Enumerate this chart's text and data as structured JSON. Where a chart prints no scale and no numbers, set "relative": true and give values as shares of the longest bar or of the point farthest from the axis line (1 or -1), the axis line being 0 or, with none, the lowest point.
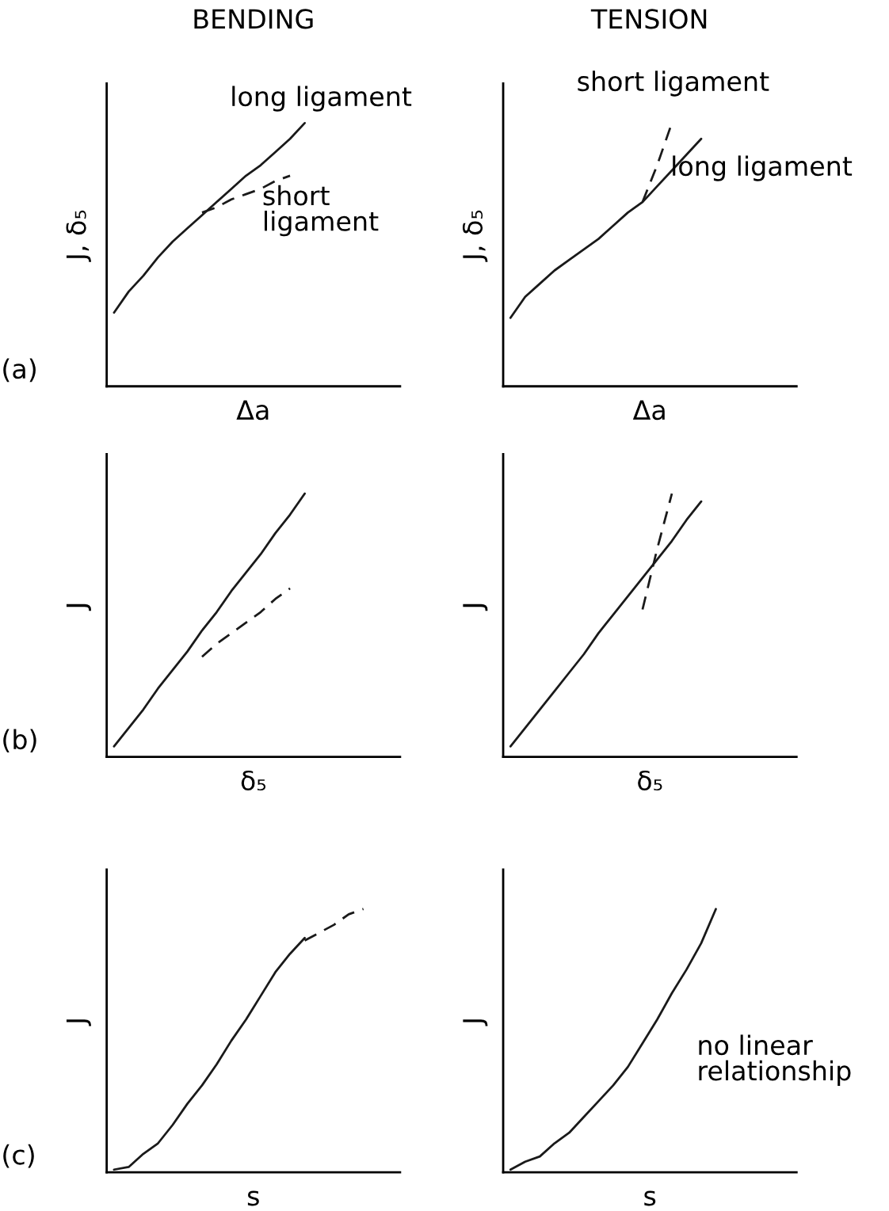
{
  "chart_data": [
    {
      "type": "line",
      "title": "BENDING",
      "xlabel": "Δa",
      "ylabel": "J, δ₅",
      "relative": true,
      "categories": [
        null,
        null,
        null,
        null,
        null,
        null,
        null,
        null,
        null,
        null,
        null,
        null,
        null,
        null,
        null,
        null,
        null,
        null,
        null,
        null
      ],
      "annotations": [
        "(a)",
        "long ligament",
        "short\nligament"
      ],
      "series": [
        {
          "color": "#1a1a1a",
          "line_style": "solid",
          "values": [
            0.28,
            0.36,
            0.42,
            0.49,
            0.55,
            0.6,
            0.65,
            0.7,
            0.75,
            0.8,
            0.84,
            0.89,
            0.94,
            1.0,
            null,
            null,
            null,
            null,
            null,
            null
          ]
        },
        {
          "color": "#1a1a1a",
          "line_style": "dashed",
          "values": [
            null,
            null,
            null,
            null,
            null,
            null,
            0.66,
            0.68,
            0.71,
            0.73,
            0.75,
            0.78,
            0.8,
            null,
            null,
            null,
            null,
            null,
            null,
            null
          ]
        }
      ]
    },
    {
      "type": "line",
      "title": "TENSION",
      "xlabel": "Δa",
      "ylabel": "J, δ₅",
      "relative": true,
      "categories": [
        null,
        null,
        null,
        null,
        null,
        null,
        null,
        null,
        null,
        null,
        null,
        null,
        null,
        null,
        null,
        null,
        null,
        null,
        null,
        null
      ],
      "annotations": [
        "short ligament",
        "long ligament"
      ],
      "series": [
        {
          "color": "#1a1a1a",
          "line_style": "solid",
          "values": [
            0.26,
            0.34,
            0.39,
            0.44,
            0.48,
            0.52,
            0.56,
            0.61,
            0.66,
            0.7,
            0.76,
            0.82,
            0.88,
            0.94,
            null,
            null,
            null,
            null,
            null,
            null
          ]
        },
        {
          "color": "#1a1a1a",
          "line_style": "dashed",
          "values": [
            null,
            null,
            null,
            null,
            null,
            null,
            null,
            null,
            null,
            0.7,
            0.84,
            1.0,
            null,
            null,
            null,
            null,
            null,
            null,
            null,
            null
          ]
        }
      ]
    },
    {
      "type": "line",
      "xlabel": "δ₅",
      "ylabel": "J",
      "relative": true,
      "categories": [
        null,
        null,
        null,
        null,
        null,
        null,
        null,
        null,
        null,
        null,
        null,
        null,
        null,
        null,
        null,
        null,
        null,
        null,
        null,
        null
      ],
      "annotations": [
        "(b)"
      ],
      "series": [
        {
          "color": "#1a1a1a",
          "line_style": "solid",
          "values": [
            0.04,
            0.11,
            0.18,
            0.26,
            0.33,
            0.4,
            0.48,
            0.55,
            0.63,
            0.7,
            0.77,
            0.85,
            0.92,
            1.0,
            null,
            null,
            null,
            null,
            null,
            null
          ]
        },
        {
          "color": "#1a1a1a",
          "line_style": "dashed",
          "values": [
            null,
            null,
            null,
            null,
            null,
            null,
            0.38,
            0.43,
            0.47,
            0.51,
            0.55,
            0.6,
            0.64,
            null,
            null,
            null,
            null,
            null,
            null,
            null
          ]
        }
      ]
    },
    {
      "type": "line",
      "xlabel": "δ₅",
      "ylabel": "J",
      "relative": true,
      "categories": [
        null,
        null,
        null,
        null,
        null,
        null,
        null,
        null,
        null,
        null,
        null,
        null,
        null,
        null,
        null,
        null,
        null,
        null,
        null,
        null
      ],
      "series": [
        {
          "color": "#1a1a1a",
          "line_style": "solid",
          "values": [
            0.04,
            0.11,
            0.18,
            0.25,
            0.32,
            0.39,
            0.47,
            0.54,
            0.61,
            0.68,
            0.75,
            0.82,
            0.9,
            0.97,
            null,
            null,
            null,
            null,
            null,
            null
          ]
        },
        {
          "color": "#1a1a1a",
          "line_style": "dashed",
          "values": [
            null,
            null,
            null,
            null,
            null,
            null,
            null,
            null,
            null,
            0.56,
            0.79,
            1.0,
            null,
            null,
            null,
            null,
            null,
            null,
            null,
            null
          ]
        }
      ]
    },
    {
      "type": "line",
      "xlabel": "s",
      "ylabel": "J",
      "relative": true,
      "categories": [
        null,
        null,
        null,
        null,
        null,
        null,
        null,
        null,
        null,
        null,
        null,
        null,
        null,
        null,
        null,
        null,
        null,
        null,
        null,
        null
      ],
      "annotations": [
        "(c)"
      ],
      "series": [
        {
          "color": "#1a1a1a",
          "line_style": "solid",
          "values": [
            0.01,
            0.02,
            0.07,
            0.11,
            0.18,
            0.26,
            0.33,
            0.41,
            0.5,
            0.58,
            0.67,
            0.76,
            0.83,
            0.89,
            null,
            null,
            null,
            null,
            null,
            null
          ]
        },
        {
          "color": "#1a1a1a",
          "line_style": "dashed",
          "values": [
            null,
            null,
            null,
            null,
            null,
            null,
            null,
            null,
            null,
            null,
            null,
            null,
            null,
            0.88,
            0.91,
            0.94,
            0.98,
            1.0,
            null,
            null
          ]
        }
      ]
    },
    {
      "type": "line",
      "xlabel": "s",
      "ylabel": "J",
      "relative": true,
      "categories": [
        null,
        null,
        null,
        null,
        null,
        null,
        null,
        null,
        null,
        null,
        null,
        null,
        null,
        null,
        null,
        null,
        null,
        null,
        null,
        null
      ],
      "annotations": [
        "no linear\nrelationship"
      ],
      "series": [
        {
          "color": "#1a1a1a",
          "line_style": "solid",
          "values": [
            0.01,
            0.04,
            0.06,
            0.11,
            0.15,
            0.21,
            0.27,
            0.33,
            0.4,
            0.49,
            0.58,
            0.68,
            0.77,
            0.87,
            1.0,
            null,
            null,
            null,
            null,
            null
          ]
        }
      ]
    }
  ]
}
